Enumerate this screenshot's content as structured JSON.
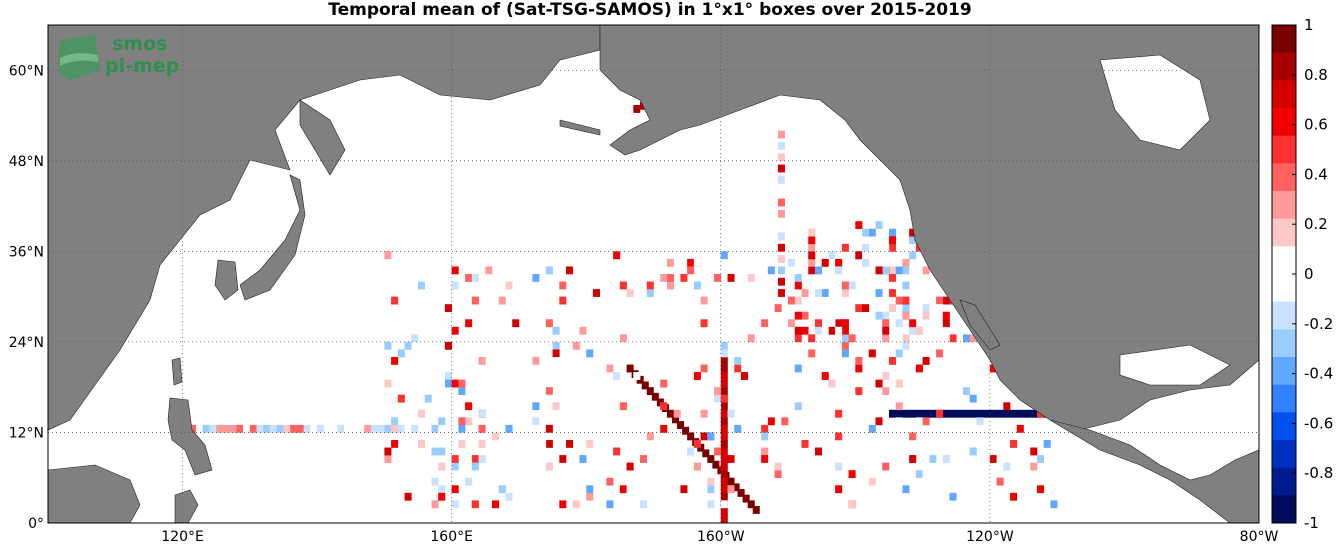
{
  "title": "Temporal mean of (Sat-TSG-SAMOS) in 1°x1° boxes over 2015-2019",
  "logo": {
    "line1": "smos",
    "line2": "pi-mep"
  },
  "colors": {
    "land": "#808080",
    "ocean": "#ffffff",
    "grid": "#555555"
  },
  "chart_data": {
    "type": "heatmap",
    "lon_range": [
      100,
      280
    ],
    "lat_range": [
      0,
      66
    ],
    "x_ticks": [
      {
        "value": 120,
        "label": "120°E"
      },
      {
        "value": 160,
        "label": "160°E"
      },
      {
        "value": 200,
        "label": "160°W"
      },
      {
        "value": 240,
        "label": "120°W"
      },
      {
        "value": 280,
        "label": "80°W"
      }
    ],
    "y_ticks": [
      {
        "value": 0,
        "label": "0°"
      },
      {
        "value": 12,
        "label": "12°N"
      },
      {
        "value": 24,
        "label": "24°N"
      },
      {
        "value": 36,
        "label": "36°N"
      },
      {
        "value": 48,
        "label": "48°N"
      },
      {
        "value": 60,
        "label": "60°N"
      }
    ],
    "grid": true,
    "colorbar": {
      "range": [
        -1,
        1
      ],
      "ticks": [
        "1",
        "0.8",
        "0.6",
        "0.4",
        "0.2",
        "0",
        "-0.2",
        "-0.4",
        "-0.6",
        "-0.8",
        "-1"
      ],
      "colors": [
        "#7a0000",
        "#a80000",
        "#d40000",
        "#f00000",
        "#ff3030",
        "#ff6060",
        "#ff9a9a",
        "#ffc8c8",
        "#ffffff",
        "#ffffff",
        "#c8e2ff",
        "#9accff",
        "#60a8ff",
        "#3080ff",
        "#0050f0",
        "#0030c0",
        "#001a90",
        "#000c5a"
      ]
    }
  }
}
